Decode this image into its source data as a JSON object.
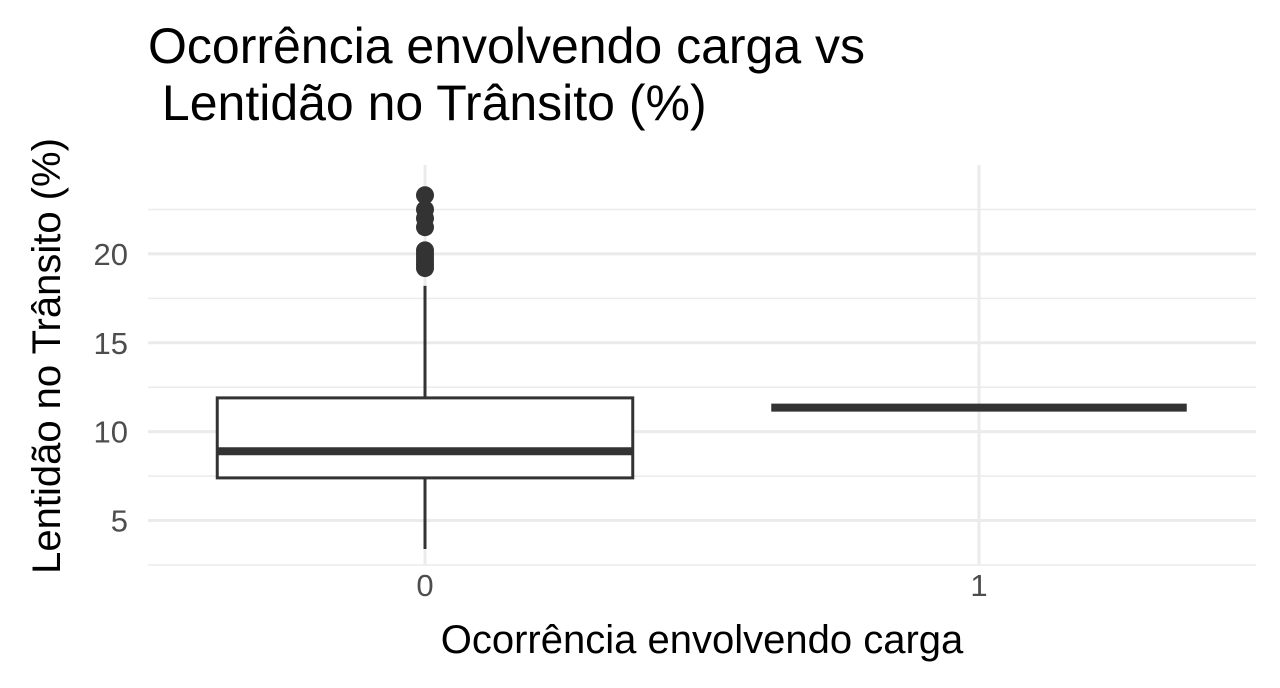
{
  "chart_data": {
    "type": "box",
    "title": "Ocorrência envolvendo carga vs\n Lentidão no Trânsito (%)",
    "xlabel": "Ocorrência envolvendo carga",
    "ylabel": "Lentidão no Trânsito (%)",
    "categories": [
      "0",
      "1"
    ],
    "ylim": [
      2.5,
      25.0
    ],
    "yticks": [
      5,
      10,
      15,
      20
    ],
    "grid": true,
    "boxes": [
      {
        "category": "0",
        "min": 3.4,
        "q1": 7.4,
        "median": 8.9,
        "q3": 11.9,
        "max": 18.2,
        "outliers": [
          19.2,
          19.4,
          19.6,
          19.8,
          20.0,
          20.2,
          21.5,
          22.0,
          22.5,
          23.3
        ]
      },
      {
        "category": "1",
        "min": 11.35,
        "q1": 11.35,
        "median": 11.35,
        "q3": 11.35,
        "max": 11.35,
        "outliers": []
      }
    ]
  }
}
